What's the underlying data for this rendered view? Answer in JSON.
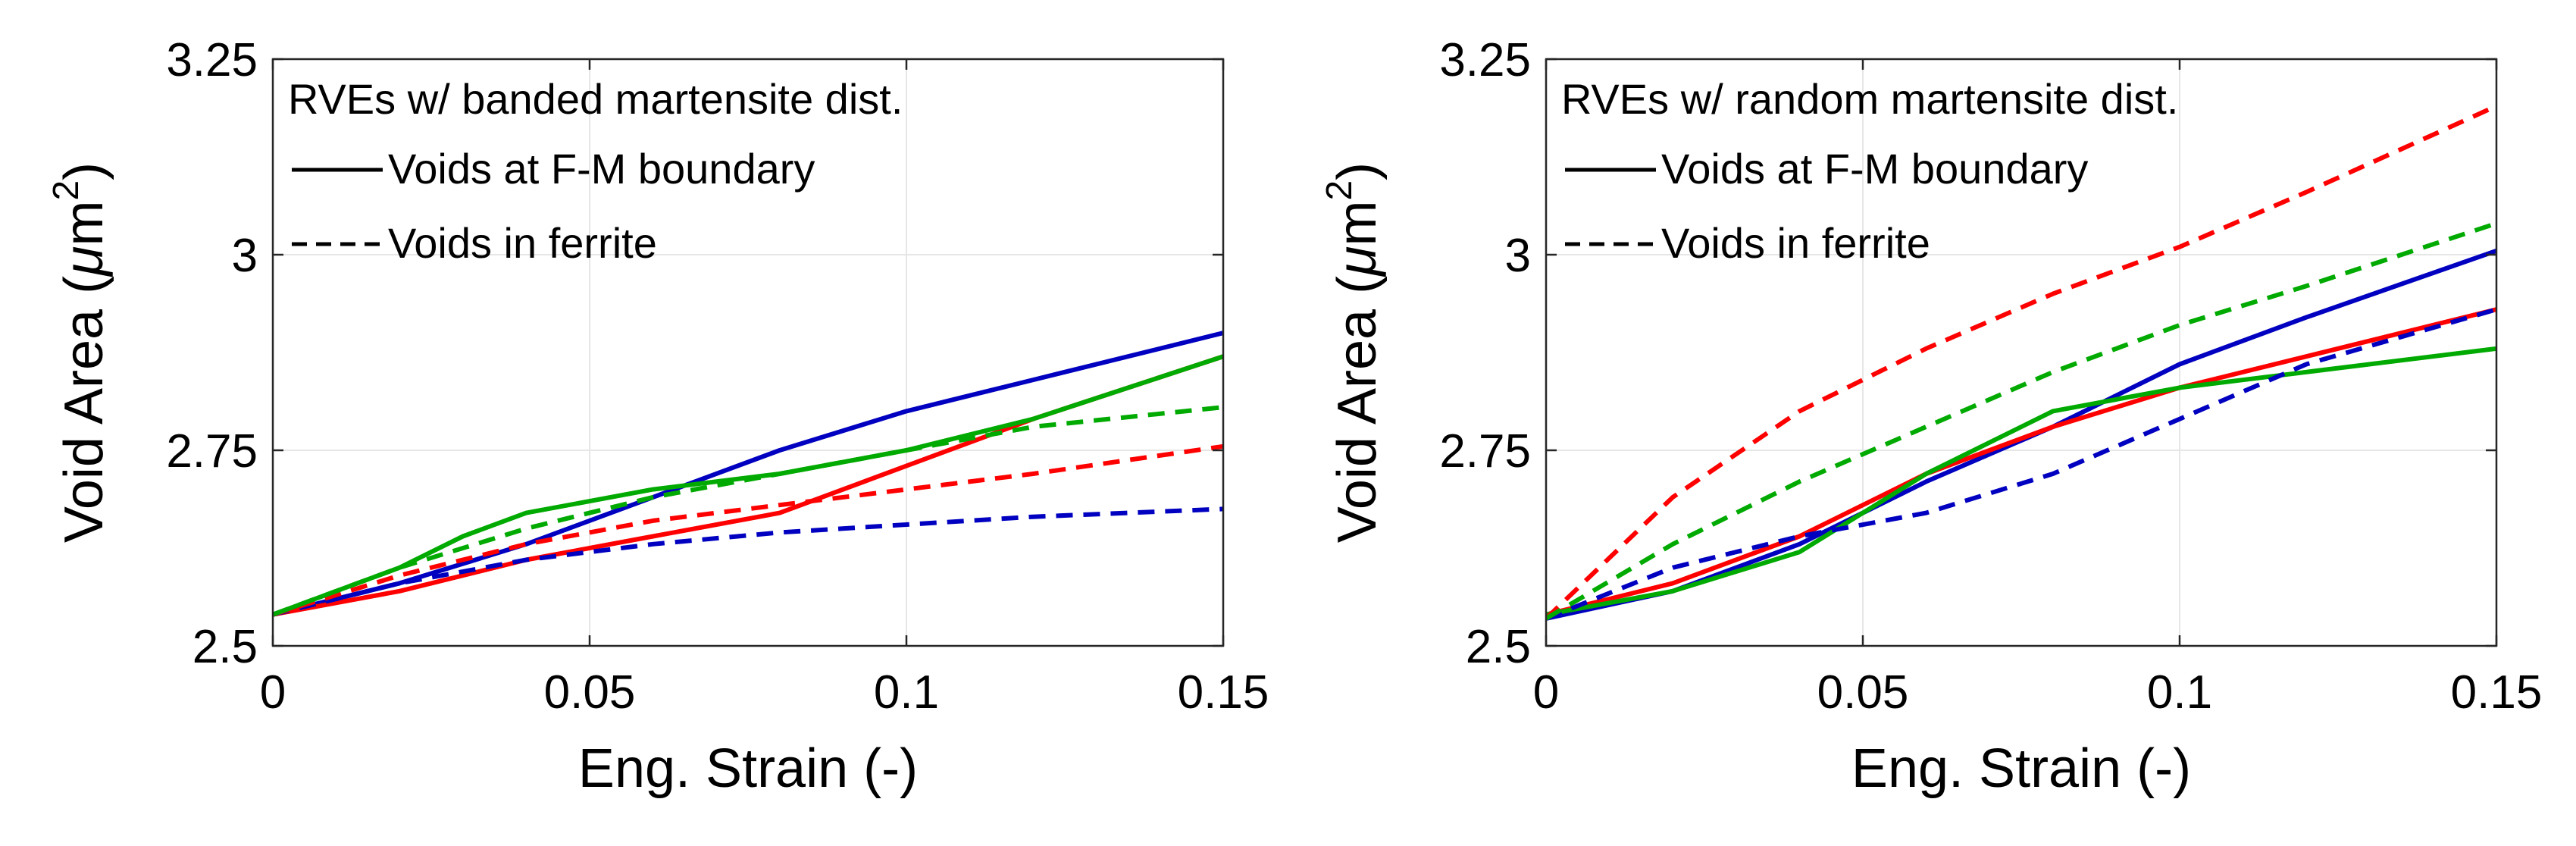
{
  "chart_data": [
    {
      "type": "line",
      "legend_title": "RVEs w/ banded martensite dist.",
      "legend_entries": [
        {
          "label": "Voids at F-M boundary",
          "style": "solid"
        },
        {
          "label": "Voids in ferrite",
          "style": "dashed"
        }
      ],
      "xlabel": "Eng. Strain (-)",
      "ylabel": "Void Area (",
      "ylabel_mu": "μ",
      "ylabel_unit": "m",
      "ylabel_sup": "2",
      "ylabel_close": ")",
      "xlim": [
        0,
        0.15
      ],
      "ylim": [
        2.5,
        3.25
      ],
      "xticks": [
        0,
        0.05,
        0.1,
        0.15
      ],
      "xtick_labels": [
        "0",
        "0.05",
        "0.1",
        "0.15"
      ],
      "yticks": [
        2.5,
        2.75,
        3,
        3.25
      ],
      "ytick_labels": [
        "2.5",
        "2.75",
        "3",
        "3.25"
      ],
      "grid": true,
      "legend_position": "top-left",
      "series": [
        {
          "name": "blue-solid",
          "color": "#0000c0",
          "style": "solid",
          "x": [
            0,
            0.02,
            0.04,
            0.06,
            0.08,
            0.1,
            0.12,
            0.15
          ],
          "y": [
            2.54,
            2.58,
            2.63,
            2.69,
            2.75,
            2.8,
            2.84,
            2.9
          ]
        },
        {
          "name": "red-solid",
          "color": "#ff0000",
          "style": "solid",
          "x": [
            0,
            0.02,
            0.04,
            0.06,
            0.08,
            0.1,
            0.12,
            0.15
          ],
          "y": [
            2.54,
            2.57,
            2.61,
            2.64,
            2.67,
            2.73,
            2.79,
            2.87
          ]
        },
        {
          "name": "green-solid",
          "color": "#00aa00",
          "style": "solid",
          "x": [
            0,
            0.02,
            0.03,
            0.04,
            0.06,
            0.08,
            0.1,
            0.12,
            0.15
          ],
          "y": [
            2.54,
            2.6,
            2.64,
            2.67,
            2.7,
            2.72,
            2.75,
            2.79,
            2.87
          ]
        },
        {
          "name": "blue-dashed",
          "color": "#0000c0",
          "style": "dashed",
          "x": [
            0,
            0.02,
            0.04,
            0.06,
            0.08,
            0.1,
            0.12,
            0.15
          ],
          "y": [
            2.54,
            2.58,
            2.61,
            2.63,
            2.645,
            2.655,
            2.665,
            2.675
          ]
        },
        {
          "name": "red-dashed",
          "color": "#ff0000",
          "style": "dashed",
          "x": [
            0,
            0.02,
            0.04,
            0.06,
            0.08,
            0.1,
            0.12,
            0.15
          ],
          "y": [
            2.54,
            2.59,
            2.63,
            2.66,
            2.68,
            2.7,
            2.72,
            2.755
          ]
        },
        {
          "name": "green-dashed",
          "color": "#00aa00",
          "style": "dashed",
          "x": [
            0,
            0.02,
            0.04,
            0.06,
            0.08,
            0.1,
            0.12,
            0.15
          ],
          "y": [
            2.54,
            2.6,
            2.65,
            2.69,
            2.72,
            2.75,
            2.78,
            2.805
          ]
        }
      ]
    },
    {
      "type": "line",
      "legend_title": "RVEs w/ random martensite dist.",
      "legend_entries": [
        {
          "label": "Voids at F-M boundary",
          "style": "solid"
        },
        {
          "label": "Voids in ferrite",
          "style": "dashed"
        }
      ],
      "xlabel": "Eng. Strain (-)",
      "ylabel": "Void Area (",
      "ylabel_mu": "μ",
      "ylabel_unit": "m",
      "ylabel_sup": "2",
      "ylabel_close": ")",
      "xlim": [
        0,
        0.15
      ],
      "ylim": [
        2.5,
        3.25
      ],
      "xticks": [
        0,
        0.05,
        0.1,
        0.15
      ],
      "xtick_labels": [
        "0",
        "0.05",
        "0.1",
        "0.15"
      ],
      "yticks": [
        2.5,
        2.75,
        3,
        3.25
      ],
      "ytick_labels": [
        "2.5",
        "2.75",
        "3",
        "3.25"
      ],
      "grid": true,
      "legend_position": "top-left",
      "series": [
        {
          "name": "blue-solid",
          "color": "#0000c0",
          "style": "solid",
          "x": [
            0,
            0.02,
            0.04,
            0.06,
            0.08,
            0.1,
            0.12,
            0.15
          ],
          "y": [
            2.535,
            2.57,
            2.63,
            2.71,
            2.78,
            2.86,
            2.92,
            3.005
          ]
        },
        {
          "name": "red-solid",
          "color": "#ff0000",
          "style": "solid",
          "x": [
            0,
            0.02,
            0.04,
            0.06,
            0.08,
            0.1,
            0.12,
            0.15
          ],
          "y": [
            2.54,
            2.58,
            2.64,
            2.72,
            2.78,
            2.83,
            2.87,
            2.93
          ]
        },
        {
          "name": "green-solid",
          "color": "#00aa00",
          "style": "solid",
          "x": [
            0,
            0.02,
            0.04,
            0.06,
            0.08,
            0.1,
            0.12,
            0.15
          ],
          "y": [
            2.54,
            2.57,
            2.62,
            2.72,
            2.8,
            2.83,
            2.85,
            2.88
          ]
        },
        {
          "name": "blue-dashed",
          "color": "#0000c0",
          "style": "dashed",
          "x": [
            0,
            0.02,
            0.04,
            0.06,
            0.08,
            0.1,
            0.12,
            0.15
          ],
          "y": [
            2.535,
            2.6,
            2.64,
            2.67,
            2.72,
            2.79,
            2.86,
            2.93
          ]
        },
        {
          "name": "red-dashed",
          "color": "#ff0000",
          "style": "dashed",
          "x": [
            0,
            0.02,
            0.04,
            0.06,
            0.08,
            0.1,
            0.12,
            0.15
          ],
          "y": [
            2.535,
            2.69,
            2.8,
            2.88,
            2.95,
            3.01,
            3.08,
            3.19
          ]
        },
        {
          "name": "green-dashed",
          "color": "#00aa00",
          "style": "dashed",
          "x": [
            0,
            0.02,
            0.04,
            0.06,
            0.08,
            0.1,
            0.12,
            0.15
          ],
          "y": [
            2.535,
            2.63,
            2.71,
            2.78,
            2.85,
            2.91,
            2.96,
            3.04
          ]
        }
      ]
    }
  ]
}
